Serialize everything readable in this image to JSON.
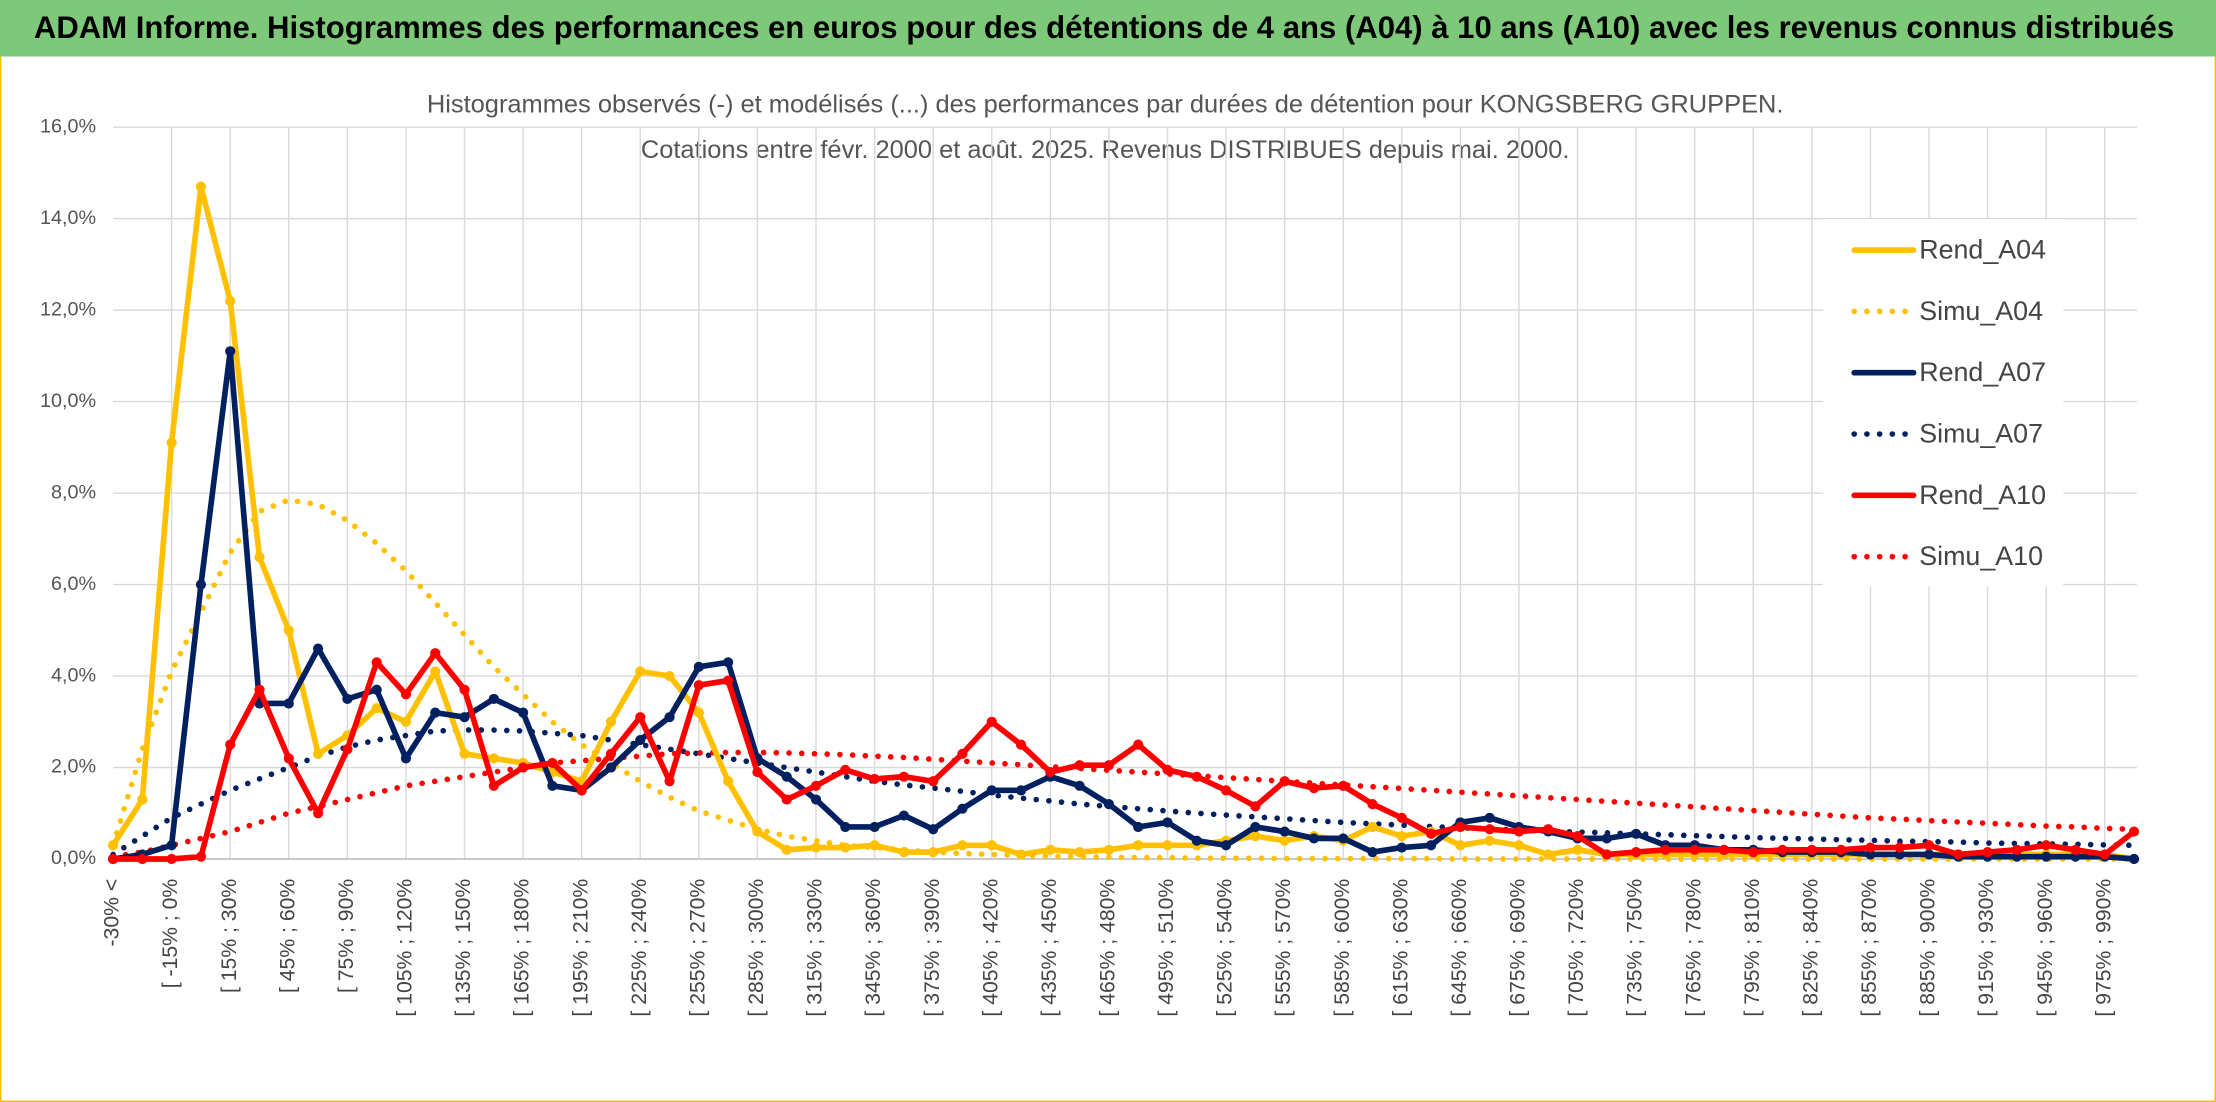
{
  "chart_data": {
    "type": "line",
    "title": "ADAM Informe. Histogrammes des performances en euros pour des détentions de 4 ans (A04) à 10 ans (A10) avec les revenus connus distribués",
    "subtitle": [
      "Histogrammes observés (-) et modélisés (...) des performances par durées de détention pour KONGSBERG GRUPPEN.",
      "Cotations entre févr. 2000 et août. 2025. Revenus DISTRIBUES depuis mai. 2000."
    ],
    "categories": [
      "-30% <",
      null,
      "[ -15% ; 0%",
      null,
      "[ 15% ; 30%",
      null,
      "[ 45% ; 60%",
      null,
      "[ 75% ; 90%",
      null,
      "[ 105% ; 120%",
      null,
      "[ 135% ; 150%",
      null,
      "[ 165% ; 180%",
      null,
      "[ 195% ; 210%",
      null,
      "[ 225% ; 240%",
      null,
      "[ 255% ; 270%",
      null,
      "[ 285% ; 300%",
      null,
      "[ 315% ; 330%",
      null,
      "[ 345% ; 360%",
      null,
      "[ 375% ; 390%",
      null,
      "[ 405% ; 420%",
      null,
      "[ 435% ; 450%",
      null,
      "[ 465% ; 480%",
      null,
      "[ 495% ; 510%",
      null,
      "[ 525% ; 540%",
      null,
      "[ 555% ; 570%",
      null,
      "[ 585% ; 600%",
      null,
      "[ 615% ; 630%",
      null,
      "[ 645% ; 660%",
      null,
      "[ 675% ; 690%",
      null,
      "[ 705% ; 720%",
      null,
      "[ 735% ; 750%",
      null,
      "[ 765% ; 780%",
      null,
      "[ 795% ; 810%",
      null,
      "[ 825% ; 840%",
      null,
      "[ 855% ; 870%",
      null,
      "[ 885% ; 900%",
      null,
      "[ 915% ; 930%",
      null,
      "[ 945% ; 960%",
      null,
      "[ 975% ; 990%",
      null
    ],
    "ylim": [
      0,
      16
    ],
    "yticks": [
      {
        "value": 0,
        "label": "0,0%"
      },
      {
        "value": 2,
        "label": "2,0%"
      },
      {
        "value": 4,
        "label": "4,0%"
      },
      {
        "value": 6,
        "label": "6,0%"
      },
      {
        "value": 8,
        "label": "8,0%"
      },
      {
        "value": 10,
        "label": "10,0%"
      },
      {
        "value": 12,
        "label": "12,0%"
      },
      {
        "value": 14,
        "label": "14,0%"
      },
      {
        "value": 16,
        "label": "16,0%"
      }
    ],
    "grid": true,
    "legend": "right",
    "series": [
      {
        "name": "Rend_A04",
        "color": "#FFC000",
        "style": "solid",
        "values": [
          0.3,
          1.3,
          9.1,
          14.7,
          12.2,
          6.6,
          5.0,
          2.3,
          2.7,
          3.3,
          3.0,
          4.1,
          2.3,
          2.2,
          2.1,
          1.9,
          1.7,
          3.0,
          4.1,
          4.0,
          3.2,
          1.7,
          0.6,
          0.2,
          0.25,
          0.25,
          0.3,
          0.15,
          0.15,
          0.3,
          0.3,
          0.1,
          0.2,
          0.15,
          0.2,
          0.3,
          0.3,
          0.3,
          0.4,
          0.5,
          0.4,
          0.5,
          0.4,
          0.7,
          0.5,
          0.6,
          0.3,
          0.4,
          0.3,
          0.1,
          0.2,
          0.1,
          0.1,
          0.1,
          0.1,
          0.1,
          0.1,
          0.1,
          0.1,
          0.1,
          0.1,
          0.1,
          0.1,
          0.1,
          0.1,
          0.1,
          0.1,
          0.1,
          0.1,
          0.0
        ]
      },
      {
        "name": "Simu_A04",
        "color": "#FFC000",
        "style": "dotted",
        "values": [
          0.3,
          2.4,
          4.1,
          5.4,
          6.7,
          7.6,
          7.85,
          7.75,
          7.4,
          6.9,
          6.3,
          5.6,
          4.9,
          4.2,
          3.6,
          3.0,
          2.5,
          2.1,
          1.7,
          1.35,
          1.05,
          0.85,
          0.65,
          0.5,
          0.4,
          0.3,
          0.25,
          0.2,
          0.15,
          0.12,
          0.1,
          0.08,
          0.06,
          0.05,
          0.04,
          0.03,
          0.03,
          0.02,
          0.02,
          0.02,
          0.01,
          0.01,
          0.01,
          0.01,
          0.01,
          0.01,
          0.0,
          0.0,
          0.0,
          0.0,
          0.0,
          0.0,
          0.0,
          0.0,
          0.0,
          0.0,
          0.0,
          0.0,
          0.0,
          0.0,
          0.0,
          0.0,
          0.0,
          0.0,
          0.0,
          0.0,
          0.0,
          0.0,
          0.0,
          0.0
        ]
      },
      {
        "name": "Rend_A07",
        "color": "#002060",
        "style": "solid",
        "values": [
          0,
          0.1,
          0.3,
          6.0,
          11.1,
          3.4,
          3.4,
          4.6,
          3.5,
          3.7,
          2.2,
          3.2,
          3.1,
          3.5,
          3.2,
          1.6,
          1.5,
          2.0,
          2.6,
          3.1,
          4.2,
          4.3,
          2.2,
          1.8,
          1.3,
          0.7,
          0.7,
          0.95,
          0.65,
          1.1,
          1.5,
          1.5,
          1.8,
          1.6,
          1.2,
          0.7,
          0.8,
          0.4,
          0.3,
          0.7,
          0.6,
          0.45,
          0.45,
          0.15,
          0.25,
          0.3,
          0.8,
          0.9,
          0.7,
          0.6,
          0.45,
          0.45,
          0.55,
          0.3,
          0.3,
          0.2,
          0.2,
          0.15,
          0.15,
          0.15,
          0.1,
          0.1,
          0.1,
          0.05,
          0.05,
          0.05,
          0.05,
          0.05,
          0.05,
          0.0
        ]
      },
      {
        "name": "Simu_A07",
        "color": "#002060",
        "style": "dotted",
        "values": [
          0.1,
          0.5,
          0.9,
          1.2,
          1.5,
          1.75,
          2.0,
          2.25,
          2.45,
          2.6,
          2.7,
          2.8,
          2.82,
          2.82,
          2.8,
          2.75,
          2.7,
          2.6,
          2.5,
          2.4,
          2.3,
          2.2,
          2.1,
          2.0,
          1.9,
          1.8,
          1.7,
          1.62,
          1.55,
          1.48,
          1.4,
          1.33,
          1.27,
          1.2,
          1.15,
          1.1,
          1.05,
          1.0,
          0.96,
          0.92,
          0.88,
          0.84,
          0.8,
          0.77,
          0.74,
          0.71,
          0.68,
          0.66,
          0.63,
          0.61,
          0.59,
          0.57,
          0.55,
          0.53,
          0.51,
          0.49,
          0.47,
          0.45,
          0.44,
          0.42,
          0.41,
          0.39,
          0.38,
          0.37,
          0.35,
          0.34,
          0.33,
          0.32,
          0.31,
          0.3
        ]
      },
      {
        "name": "Rend_A10",
        "color": "#FF0000",
        "style": "solid",
        "values": [
          0,
          0,
          0,
          0.05,
          2.5,
          3.7,
          2.2,
          1.0,
          2.4,
          4.3,
          3.6,
          4.5,
          3.7,
          1.6,
          2.0,
          2.1,
          1.5,
          2.3,
          3.1,
          1.7,
          3.8,
          3.9,
          1.9,
          1.3,
          1.6,
          1.95,
          1.75,
          1.8,
          1.7,
          2.3,
          3.0,
          2.5,
          1.9,
          2.05,
          2.05,
          2.5,
          1.95,
          1.8,
          1.5,
          1.15,
          1.7,
          1.55,
          1.6,
          1.2,
          0.9,
          0.55,
          0.7,
          0.65,
          0.6,
          0.65,
          0.5,
          0.1,
          0.15,
          0.2,
          0.2,
          0.2,
          0.15,
          0.2,
          0.2,
          0.2,
          0.25,
          0.25,
          0.3,
          0.1,
          0.15,
          0.2,
          0.3,
          0.2,
          0.1,
          0.6
        ]
      },
      {
        "name": "Simu_A10",
        "color": "#FF0000",
        "style": "dotted",
        "values": [
          0.05,
          0.15,
          0.3,
          0.45,
          0.6,
          0.8,
          1.0,
          1.15,
          1.3,
          1.45,
          1.6,
          1.7,
          1.8,
          1.9,
          2.0,
          2.1,
          2.15,
          2.2,
          2.25,
          2.3,
          2.32,
          2.33,
          2.33,
          2.32,
          2.3,
          2.28,
          2.25,
          2.22,
          2.18,
          2.14,
          2.1,
          2.06,
          2.02,
          1.98,
          1.94,
          1.9,
          1.86,
          1.82,
          1.78,
          1.74,
          1.7,
          1.66,
          1.62,
          1.58,
          1.54,
          1.5,
          1.46,
          1.42,
          1.38,
          1.34,
          1.3,
          1.26,
          1.22,
          1.18,
          1.14,
          1.1,
          1.06,
          1.02,
          0.98,
          0.94,
          0.9,
          0.87,
          0.84,
          0.81,
          0.78,
          0.75,
          0.72,
          0.7,
          0.67,
          0.65
        ]
      }
    ]
  }
}
